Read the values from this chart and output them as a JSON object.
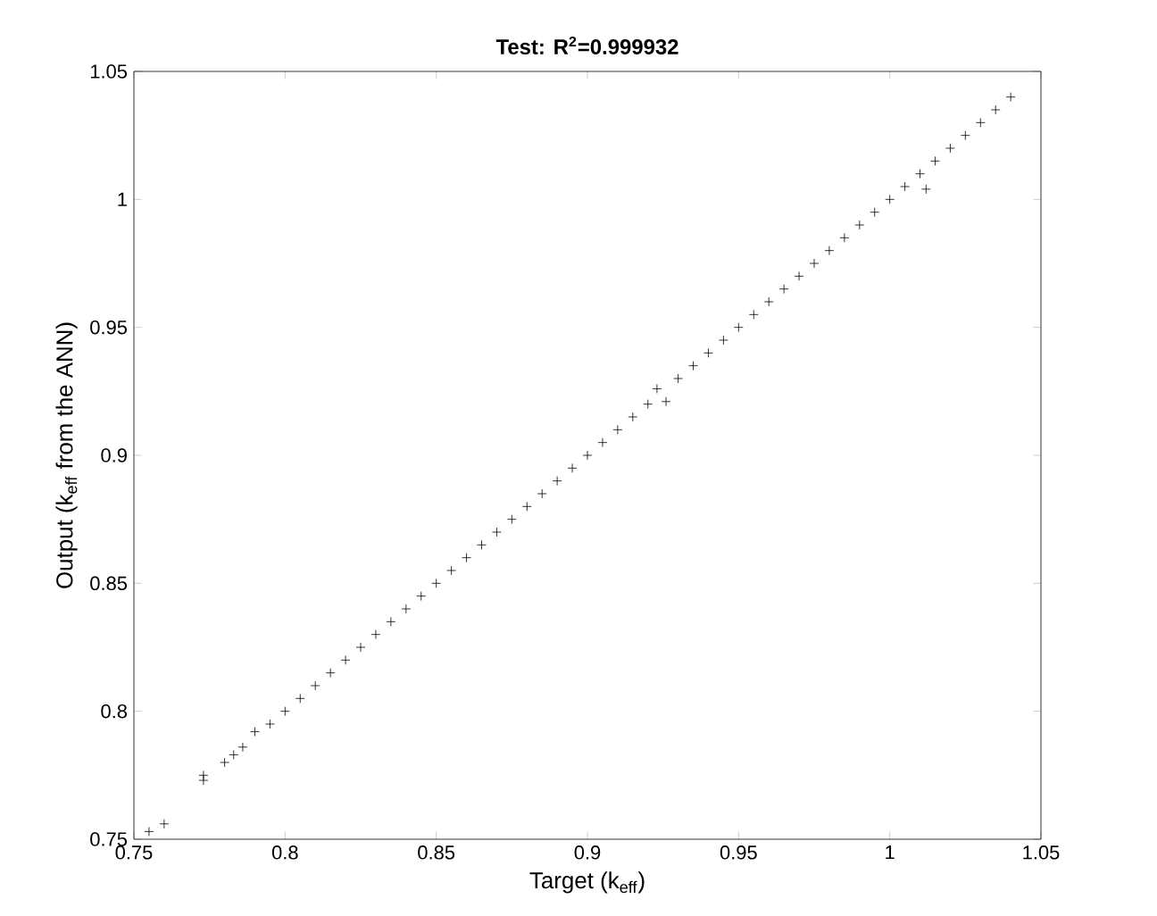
{
  "chart_data": {
    "type": "scatter",
    "title": "Test: R$^{2}$=0.999932",
    "xlabel": "Target (k$_{eff}$)",
    "ylabel": "Output (k$_{eff}$ from the ANN)",
    "x": [
      0.755,
      0.76,
      0.773,
      0.773,
      0.78,
      0.783,
      0.786,
      0.79,
      0.795,
      0.8,
      0.805,
      0.81,
      0.815,
      0.82,
      0.825,
      0.83,
      0.835,
      0.84,
      0.845,
      0.85,
      0.855,
      0.86,
      0.865,
      0.87,
      0.875,
      0.88,
      0.885,
      0.89,
      0.895,
      0.9,
      0.905,
      0.91,
      0.915,
      0.92,
      0.923,
      0.926,
      0.93,
      0.935,
      0.94,
      0.945,
      0.95,
      0.955,
      0.96,
      0.965,
      0.97,
      0.975,
      0.98,
      0.985,
      0.99,
      0.995,
      1.0,
      1.005,
      1.01,
      1.012,
      1.015,
      1.02,
      1.025,
      1.03,
      1.035,
      1.04
    ],
    "values": [
      0.753,
      0.756,
      0.773,
      0.775,
      0.78,
      0.783,
      0.786,
      0.792,
      0.795,
      0.8,
      0.805,
      0.81,
      0.815,
      0.82,
      0.825,
      0.83,
      0.835,
      0.84,
      0.845,
      0.85,
      0.855,
      0.86,
      0.865,
      0.87,
      0.875,
      0.88,
      0.885,
      0.89,
      0.895,
      0.9,
      0.905,
      0.91,
      0.915,
      0.92,
      0.926,
      0.921,
      0.93,
      0.935,
      0.94,
      0.945,
      0.95,
      0.955,
      0.96,
      0.965,
      0.97,
      0.975,
      0.98,
      0.985,
      0.99,
      0.995,
      1.0,
      1.005,
      1.01,
      1.004,
      1.015,
      1.02,
      1.025,
      1.03,
      1.035,
      1.04
    ],
    "color": "#000000",
    "marker": "cross",
    "xlim": [
      0.75,
      1.05
    ],
    "ylim": [
      0.75,
      1.05
    ],
    "xticks": [
      0.75,
      0.8,
      0.85,
      0.9,
      0.95,
      1,
      1.05
    ],
    "yticks": [
      0.75,
      0.8,
      0.85,
      0.9,
      0.95,
      1,
      1.05
    ],
    "grid": false
  }
}
